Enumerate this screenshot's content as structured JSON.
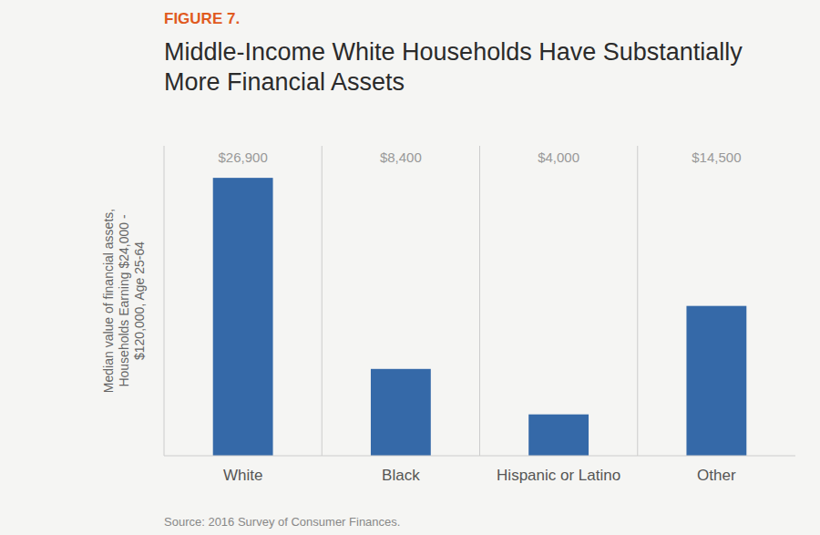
{
  "chart_data": {
    "type": "bar",
    "title": [
      "Middle-Income White Households Have Substantially",
      "More Financial Assets"
    ],
    "ylabel": [
      "Median value of financial assets,",
      "Households Earning $24,000 -",
      "$120,000, Age 25-64"
    ],
    "annotations": [
      "FIGURE 7.",
      "Source: 2016 Survey of Consumer Finances."
    ],
    "categories": [
      "White",
      "Black",
      "Hispanic or Latino",
      "Other"
    ],
    "values": [
      26900,
      8400,
      4000,
      14500
    ],
    "value_labels": [
      "$26,900",
      "$8,400",
      "$4,000",
      "$14,500"
    ],
    "data_labels": true,
    "color": "#3569a8",
    "ylim": [
      0,
      30000
    ],
    "grid": false,
    "tick_labels": "x"
  }
}
